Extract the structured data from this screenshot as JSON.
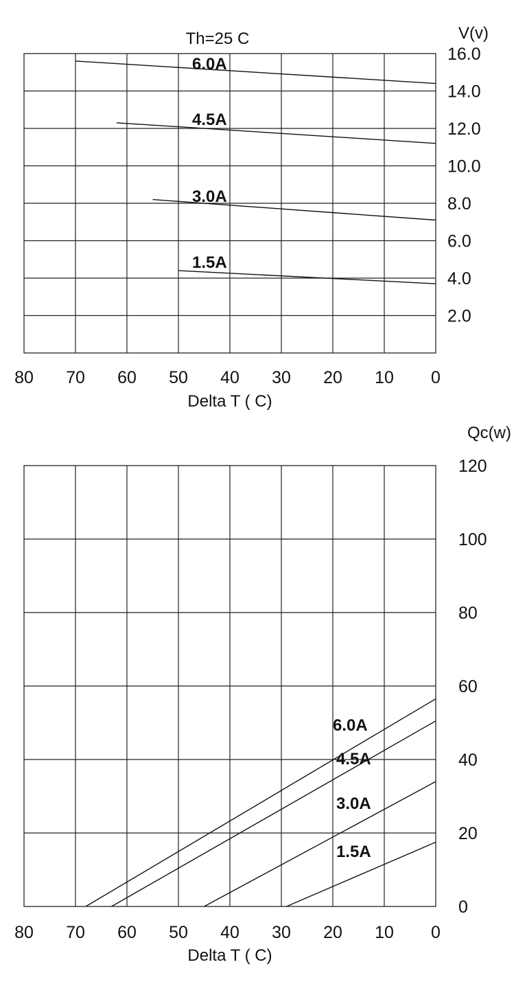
{
  "chart_data": [
    {
      "type": "line",
      "title": "Th=25 C",
      "xlabel": "Delta T ( C)",
      "ylabel": "V(v)",
      "xlim": [
        80,
        0
      ],
      "ylim": [
        0,
        16
      ],
      "x_ticks": [
        "80",
        "70",
        "60",
        "50",
        "40",
        "30",
        "20",
        "10",
        "0"
      ],
      "y_ticks": [
        "2.0",
        "4.0",
        "6.0",
        "8.0",
        "10.0",
        "12.0",
        "14.0",
        "16.0"
      ],
      "grid": true,
      "series": [
        {
          "name": "6.0A",
          "x": [
            70,
            0
          ],
          "y": [
            15.6,
            14.4
          ]
        },
        {
          "name": "4.5A",
          "x": [
            62,
            0
          ],
          "y": [
            12.3,
            11.2
          ]
        },
        {
          "name": "3.0A",
          "x": [
            55,
            0
          ],
          "y": [
            8.2,
            7.1
          ]
        },
        {
          "name": "1.5A",
          "x": [
            50,
            0
          ],
          "y": [
            4.4,
            3.7
          ]
        }
      ]
    },
    {
      "type": "line",
      "title": "",
      "xlabel": "Delta T ( C)",
      "ylabel": "Qc(w)",
      "xlim": [
        80,
        0
      ],
      "ylim": [
        0,
        120
      ],
      "x_ticks": [
        "80",
        "70",
        "60",
        "50",
        "40",
        "30",
        "20",
        "10",
        "0"
      ],
      "y_ticks": [
        "0",
        "20",
        "40",
        "60",
        "80",
        "100",
        "120"
      ],
      "grid": true,
      "series": [
        {
          "name": "6.0A",
          "x": [
            68,
            0
          ],
          "y": [
            0,
            56.5
          ]
        },
        {
          "name": "4.5A",
          "x": [
            63,
            0
          ],
          "y": [
            0,
            50.5
          ]
        },
        {
          "name": "3.0A",
          "x": [
            45,
            0
          ],
          "y": [
            0,
            34
          ]
        },
        {
          "name": "1.5A",
          "x": [
            29,
            0
          ],
          "y": [
            0,
            17.5
          ]
        }
      ]
    }
  ]
}
